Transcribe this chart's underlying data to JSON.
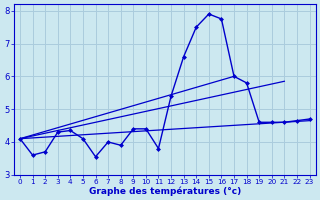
{
  "bg_color": "#cce8f0",
  "grid_color": "#aaccdd",
  "line_color": "#0000cc",
  "xlabel": "Graphe des températures (°c)",
  "xlim": [
    -0.5,
    23.5
  ],
  "ylim": [
    3.0,
    8.2
  ],
  "yticks": [
    3,
    4,
    5,
    6,
    7,
    8
  ],
  "xticks": [
    0,
    1,
    2,
    3,
    4,
    5,
    6,
    7,
    8,
    9,
    10,
    11,
    12,
    13,
    14,
    15,
    16,
    17,
    18,
    19,
    20,
    21,
    22,
    23
  ],
  "series1_x": [
    0,
    1,
    2,
    3,
    4,
    5,
    6,
    7,
    8,
    9,
    10,
    11,
    12,
    13,
    14,
    15,
    16,
    17,
    18,
    19,
    20,
    21,
    22,
    23
  ],
  "series1_y": [
    4.1,
    3.6,
    3.7,
    4.3,
    4.35,
    4.1,
    3.55,
    4.0,
    3.9,
    4.4,
    4.4,
    3.8,
    5.4,
    6.6,
    7.5,
    7.9,
    7.75,
    6.0,
    5.8,
    4.6,
    4.6,
    4.6,
    4.65,
    4.7
  ],
  "series2_x": [
    0,
    23
  ],
  "series2_y": [
    4.1,
    4.65
  ],
  "series3_x": [
    0,
    21
  ],
  "series3_y": [
    4.1,
    5.85
  ],
  "series4_x": [
    0,
    17
  ],
  "series4_y": [
    4.1,
    6.0
  ]
}
